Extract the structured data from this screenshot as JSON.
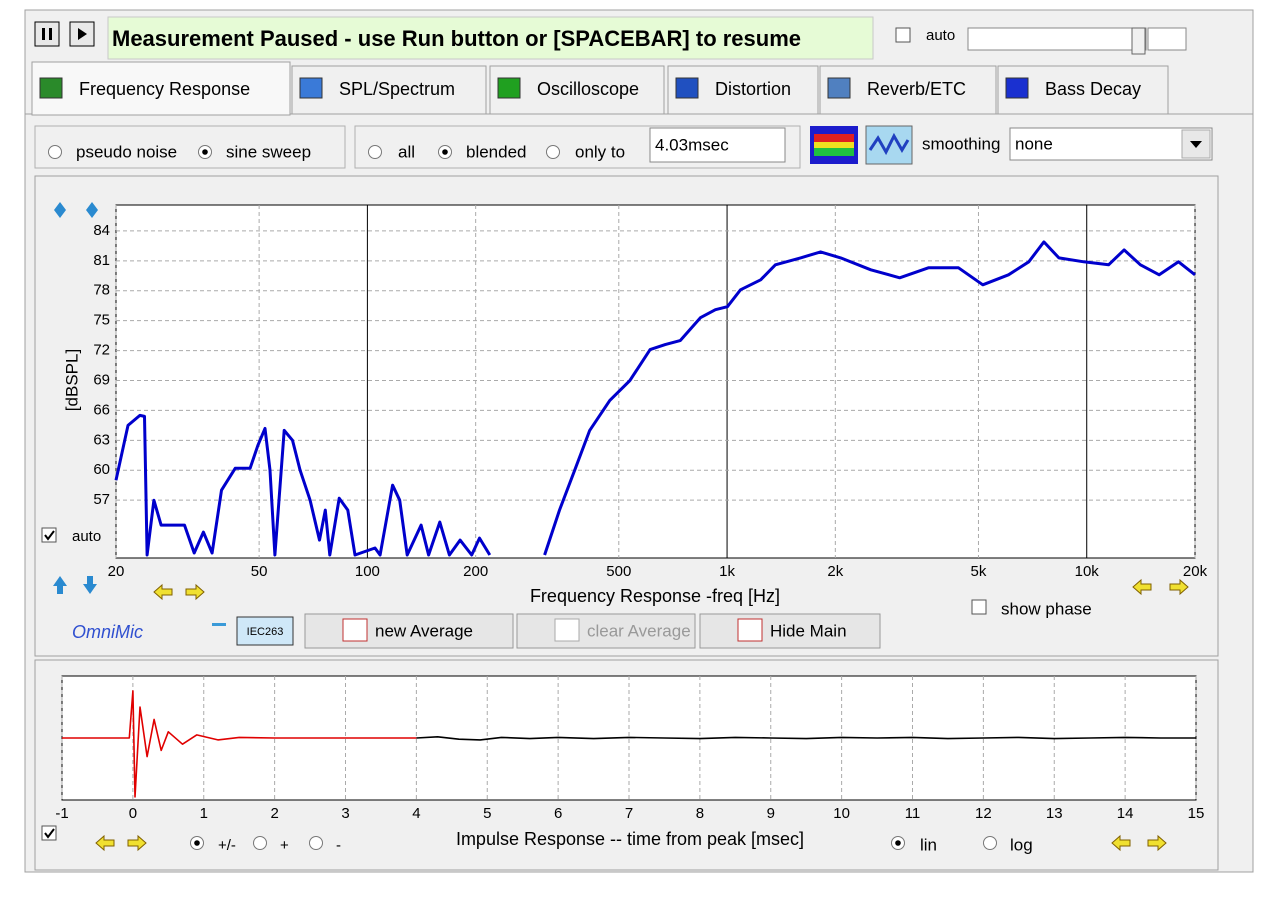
{
  "toolbar": {
    "status": "Measurement Paused - use Run button or [SPACEBAR] to resume",
    "auto": {
      "label": "auto",
      "checked": false
    }
  },
  "tabs": [
    {
      "label": "Frequency Response",
      "active": true
    },
    {
      "label": "SPL/Spectrum",
      "active": false
    },
    {
      "label": "Oscilloscope",
      "active": false
    },
    {
      "label": "Distortion",
      "active": false
    },
    {
      "label": "Reverb/ETC",
      "active": false
    },
    {
      "label": "Bass Decay",
      "active": false
    }
  ],
  "options": {
    "signal": [
      {
        "label": "pseudo noise",
        "checked": false
      },
      {
        "label": "sine sweep",
        "checked": true
      }
    ],
    "window": [
      {
        "label": "all",
        "checked": false
      },
      {
        "label": "blended",
        "checked": true
      },
      {
        "label": "only to",
        "checked": false
      }
    ],
    "window_time": "4.03msec",
    "smoothing_label": "smoothing",
    "smoothing": "none"
  },
  "freq_panel": {
    "auto": {
      "label": "auto",
      "checked": true
    },
    "show_phase": {
      "label": "show phase",
      "checked": false
    },
    "mic": "OmniMic",
    "calibration": "IEC263",
    "buttons": [
      {
        "label": "new Average",
        "enabled": true
      },
      {
        "label": "clear Average",
        "enabled": false
      },
      {
        "label": "Hide Main",
        "enabled": true
      }
    ]
  },
  "impulse_panel": {
    "show": {
      "checked": true
    },
    "polarity": [
      {
        "label": "+/-",
        "checked": true
      },
      {
        "label": "+",
        "checked": false
      },
      {
        "label": "-",
        "checked": false
      }
    ],
    "scale": [
      {
        "label": "lin",
        "checked": true
      },
      {
        "label": "log",
        "checked": false
      }
    ]
  },
  "chart_data": [
    {
      "type": "line",
      "xlabel": "Frequency Response -freq [Hz]",
      "ylabel": "[dBSPL]",
      "xscale": "log",
      "grid": true,
      "x": [
        20,
        21.6,
        23.3,
        24,
        24.4,
        25.5,
        26.7,
        31,
        33,
        35,
        37,
        39.3,
        42.9,
        47.2,
        49.6,
        51.9,
        53.6,
        55.3,
        58.7,
        61.9,
        65,
        69.3,
        73.6,
        76.4,
        78.6,
        83.5,
        88.2,
        92.4,
        105,
        108.5,
        117.5,
        123,
        129,
        141,
        148,
        159,
        169,
        181,
        195,
        205,
        219,
        260,
        311,
        342,
        377,
        415,
        472,
        537,
        611,
        673,
        741,
        843,
        928,
        1002,
        1090,
        1240,
        1363,
        1600,
        1820,
        2070,
        2510,
        3020,
        3630,
        4400,
        5140,
        6060,
        6900,
        7600,
        8370,
        9810,
        11500,
        12700,
        14100,
        15900,
        18000,
        20000
      ],
      "series": [
        {
          "color": "#0000cc",
          "values": [
            59,
            64.5,
            65.5,
            65.4,
            51.5,
            57,
            54.5,
            54.5,
            51.7,
            53.8,
            51.7,
            58,
            60.2,
            60.2,
            62.5,
            64.2,
            60,
            51.5,
            64,
            63,
            60,
            57,
            53,
            56,
            51.5,
            57.2,
            56,
            51.5,
            52.2,
            51.5,
            58.5,
            57,
            51.5,
            54.5,
            51.5,
            54.8,
            51.5,
            53,
            51.5,
            53.2,
            51.5,
            null,
            51.5,
            56,
            60,
            64,
            67,
            69,
            72.1,
            72.6,
            73,
            75.3,
            76.1,
            76.4,
            78.1,
            79.1,
            80.6,
            81.3,
            81.9,
            81.3,
            80.1,
            79.3,
            80.3,
            80.3,
            78.6,
            79.6,
            80.9,
            82.9,
            81.3,
            80.9,
            80.6,
            82.1,
            80.6,
            79.6,
            80.9,
            79.6
          ]
        }
      ],
      "xlim": [
        20,
        20000
      ],
      "ylim": [
        51.2,
        86.6
      ],
      "xticks": [
        20,
        50,
        100,
        200,
        500,
        {
          "value": 1000,
          "label": "1k"
        },
        {
          "value": 2000,
          "label": "2k"
        },
        {
          "value": 5000,
          "label": "5k"
        },
        {
          "value": 10000,
          "label": "10k"
        },
        {
          "value": 20000,
          "label": "20k"
        }
      ],
      "yticks": [
        57,
        60,
        63,
        66,
        69,
        72,
        75,
        78,
        81,
        84
      ]
    },
    {
      "type": "line",
      "xlabel": "Impulse Response  -- time from peak [msec]",
      "grid": true,
      "series": [
        {
          "color": "#e00000",
          "x": [
            -1,
            -0.05,
            0,
            0.03,
            0.1,
            0.2,
            0.3,
            0.4,
            0.5,
            0.7,
            0.9,
            1.2,
            1.5,
            2,
            4
          ],
          "values": [
            0,
            0,
            0.76,
            -0.95,
            0.5,
            -0.3,
            0.3,
            -0.2,
            0.1,
            -0.1,
            0.05,
            -0.03,
            0.01,
            0,
            0
          ]
        },
        {
          "color": "#000000",
          "x": [
            4,
            4.3,
            4.6,
            4.9,
            5.2,
            5.6,
            6,
            6.5,
            7,
            7.5,
            8,
            8.5,
            9,
            9.5,
            10,
            10.5,
            11,
            11.5,
            12,
            12.5,
            13,
            13.5,
            14,
            14.5,
            15
          ],
          "values": [
            0,
            0.02,
            -0.02,
            -0.03,
            0.01,
            -0.01,
            0.01,
            -0.01,
            0.01,
            0,
            -0.01,
            0.01,
            0,
            -0.01,
            0.01,
            0,
            0.01,
            -0.01,
            0,
            0.01,
            -0.01,
            0,
            0.01,
            0,
            0
          ]
        }
      ],
      "xlim": [
        -1,
        15
      ],
      "ylim": [
        -1,
        1
      ],
      "xticks": [
        -1,
        0,
        1,
        2,
        3,
        4,
        5,
        6,
        7,
        8,
        9,
        10,
        11,
        12,
        13,
        14,
        15
      ]
    }
  ]
}
